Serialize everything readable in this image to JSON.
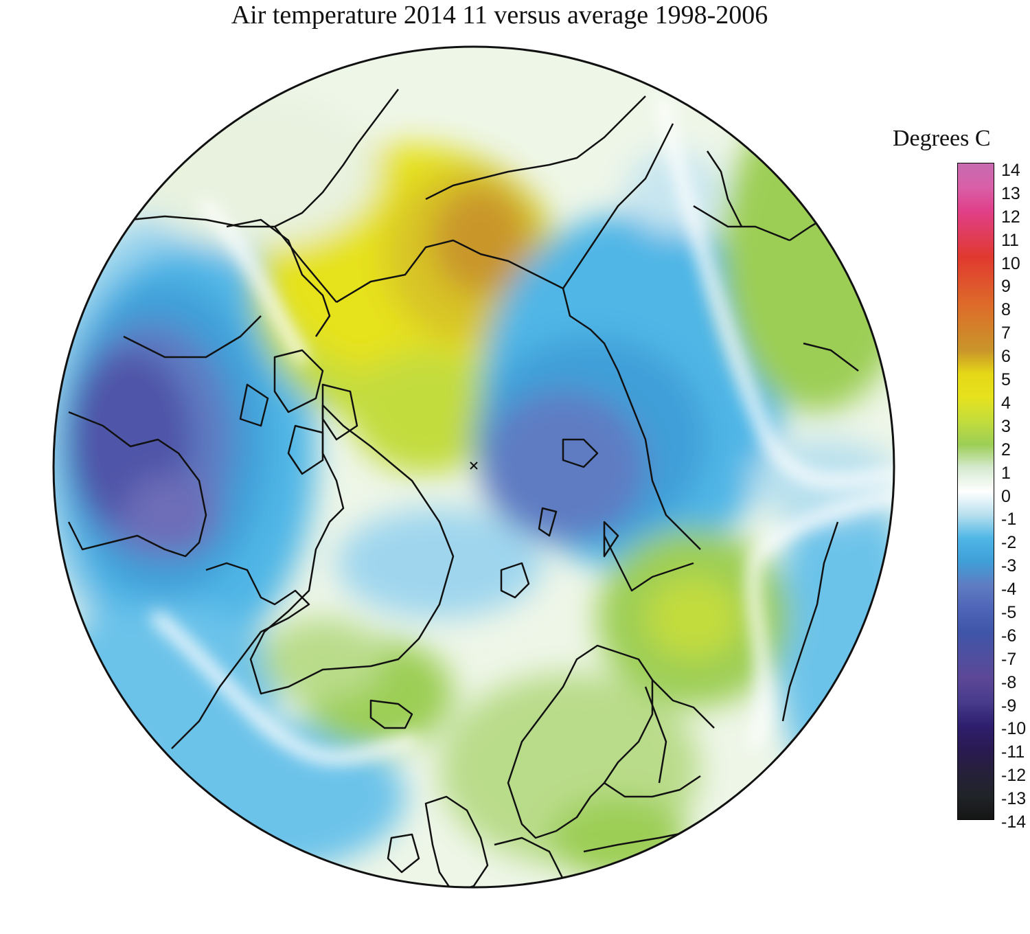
{
  "title": "Air temperature 2014 11 versus average 1998-2006",
  "legend": {
    "title": "Degrees C",
    "ticks": [
      "14",
      "13",
      "12",
      "11",
      "10",
      "9",
      "8",
      "7",
      "6",
      "5",
      "4",
      "3",
      "2",
      "1",
      "0",
      "-1",
      "-2",
      "-3",
      "-4",
      "-5",
      "-6",
      "-7",
      "-8",
      "-9",
      "-10",
      "-11",
      "-12",
      "-13",
      "-14"
    ],
    "range": [
      -14,
      14
    ],
    "stops": [
      {
        "value": 14,
        "color": "#c76bb0"
      },
      {
        "value": 13,
        "color": "#d860a8"
      },
      {
        "value": 12,
        "color": "#e0408a"
      },
      {
        "value": 10,
        "color": "#e0392f"
      },
      {
        "value": 8,
        "color": "#de6a2a"
      },
      {
        "value": 6,
        "color": "#c9962a"
      },
      {
        "value": 5,
        "color": "#e6d817"
      },
      {
        "value": 4,
        "color": "#e6e21e"
      },
      {
        "value": 3,
        "color": "#c3dc3c"
      },
      {
        "value": 2,
        "color": "#9cce55"
      },
      {
        "value": 1,
        "color": "#d6ead0"
      },
      {
        "value": 0,
        "color": "#ffffff"
      },
      {
        "value": -1,
        "color": "#b8e0ee"
      },
      {
        "value": -2,
        "color": "#4fb6e6"
      },
      {
        "value": -3,
        "color": "#3f9fd8"
      },
      {
        "value": -4,
        "color": "#5f7cc2"
      },
      {
        "value": -5,
        "color": "#4f65b8"
      },
      {
        "value": -6,
        "color": "#3f55a8"
      },
      {
        "value": -7,
        "color": "#4f4fa0"
      },
      {
        "value": -8,
        "color": "#5c4796"
      },
      {
        "value": -9,
        "color": "#473b8c"
      },
      {
        "value": -10,
        "color": "#2e1e6e"
      },
      {
        "value": -11,
        "color": "#2a1a52"
      },
      {
        "value": -12,
        "color": "#26203a"
      },
      {
        "value": -13,
        "color": "#202428"
      },
      {
        "value": -14,
        "color": "#151515"
      }
    ]
  },
  "colors": {
    "background": "#ffffff",
    "coastline": "#111111",
    "disc_fill": "#f4f9f0"
  }
}
